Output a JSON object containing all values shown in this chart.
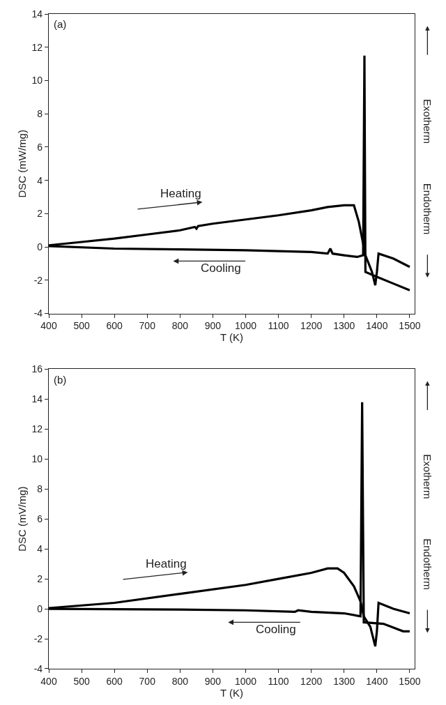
{
  "chart_data": [
    {
      "type": "line",
      "title": "(a)",
      "xlabel": "T (K)",
      "ylabel": "DSC (mW/mg)",
      "xlim": [
        400,
        1515
      ],
      "ylim": [
        -4,
        14
      ],
      "xticks": [
        400,
        500,
        600,
        700,
        800,
        900,
        1000,
        1100,
        1200,
        1300,
        1400,
        1500
      ],
      "yticks": [
        -4,
        -2,
        0,
        2,
        4,
        6,
        8,
        10,
        12,
        14
      ],
      "marker": "none",
      "line_style": "solid",
      "annotations": [
        "Heating",
        "Cooling",
        "Exotherm",
        "Endotherm"
      ],
      "series": [
        {
          "color": "#000000",
          "x": [
            400,
            500,
            600,
            700,
            800,
            845,
            850,
            855,
            900,
            1000,
            1100,
            1200,
            1250,
            1300,
            1330,
            1345,
            1355,
            1365,
            1385,
            1395,
            1400,
            1405,
            1450,
            1500
          ],
          "values": [
            0.1,
            0.3,
            0.5,
            0.75,
            1.0,
            1.2,
            1.1,
            1.25,
            1.4,
            1.65,
            1.9,
            2.2,
            2.4,
            2.5,
            2.5,
            1.5,
            0.5,
            -0.5,
            -1.5,
            -2.3,
            -1.5,
            -0.4,
            -0.7,
            -1.2
          ]
        },
        {
          "color": "#000000",
          "x": [
            1500,
            1450,
            1400,
            1365,
            1362,
            1358,
            1340,
            1300,
            1265,
            1258,
            1250,
            1200,
            1000,
            800,
            600,
            400
          ],
          "values": [
            -2.6,
            -2.2,
            -1.8,
            -1.5,
            11.5,
            -0.5,
            -0.6,
            -0.5,
            -0.4,
            -0.1,
            -0.4,
            -0.3,
            -0.2,
            -0.15,
            -0.1,
            0.05
          ]
        }
      ]
    },
    {
      "type": "line",
      "title": "(b)",
      "xlabel": "T (K)",
      "ylabel": "DSC (mV/mg)",
      "xlim": [
        400,
        1515
      ],
      "ylim": [
        -4,
        16
      ],
      "xticks": [
        400,
        500,
        600,
        700,
        800,
        900,
        1000,
        1100,
        1200,
        1300,
        1400,
        1500
      ],
      "yticks": [
        -4,
        -2,
        0,
        2,
        4,
        6,
        8,
        10,
        12,
        14,
        16
      ],
      "marker": "none",
      "line_style": "solid",
      "annotations": [
        "Heating",
        "Cooling",
        "Exotherm",
        "Endotherm"
      ],
      "series": [
        {
          "color": "#000000",
          "x": [
            400,
            600,
            800,
            1000,
            1100,
            1200,
            1250,
            1280,
            1300,
            1330,
            1350,
            1360,
            1380,
            1395,
            1400,
            1405,
            1450,
            1500
          ],
          "values": [
            0.05,
            0.4,
            1.0,
            1.6,
            2.0,
            2.4,
            2.7,
            2.7,
            2.4,
            1.5,
            0.5,
            -0.5,
            -1.2,
            -2.5,
            -1.5,
            0.4,
            0.0,
            -0.3
          ]
        },
        {
          "color": "#000000",
          "x": [
            1500,
            1480,
            1420,
            1360,
            1355,
            1350,
            1300,
            1200,
            1160,
            1150,
            1000,
            800,
            400
          ],
          "values": [
            -1.5,
            -1.5,
            -1.0,
            -0.9,
            13.8,
            -0.5,
            -0.3,
            -0.2,
            -0.1,
            -0.2,
            -0.1,
            -0.05,
            0.0
          ]
        }
      ]
    }
  ]
}
